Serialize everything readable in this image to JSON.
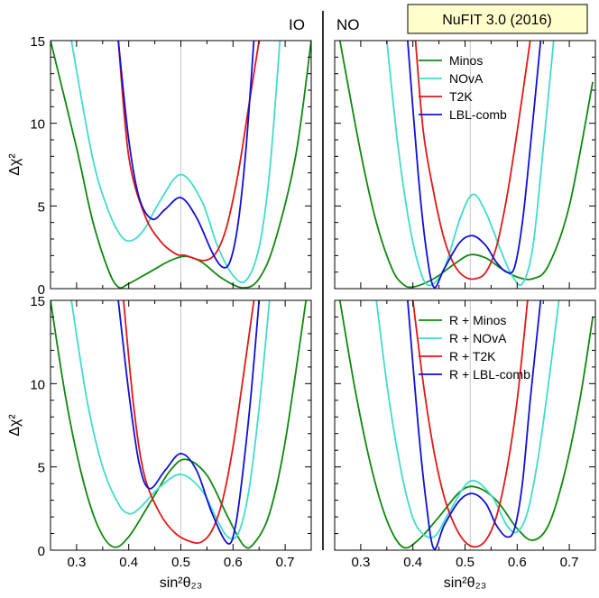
{
  "badge": "NuFIT 3.0 (2016)",
  "ordering_labels": [
    "IO",
    "NO"
  ],
  "colors": {
    "Minos": "#108810",
    "NOvA": "#40dccc",
    "T2K": "#e01818",
    "LBL-comb": "#1010d8",
    "refline": "#c8c8c8"
  },
  "chart_data": [
    {
      "type": "line",
      "panel": "top-left",
      "ordering": "IO",
      "xlim": [
        0.25,
        0.75
      ],
      "ylim": [
        0,
        15
      ],
      "xticks": [
        "0.3",
        "0.4",
        "0.5",
        "0.6",
        "0.7"
      ],
      "yticks": [
        "0",
        "5",
        "10",
        "15"
      ],
      "xlabel": "",
      "ylabel": "Δχ²",
      "reference_x": 0.5,
      "series": [
        {
          "name": "Minos",
          "x": [
            0.25,
            0.3,
            0.33,
            0.36,
            0.38,
            0.4,
            0.44,
            0.48,
            0.51,
            0.54,
            0.58,
            0.62,
            0.65,
            0.68,
            0.72,
            0.75
          ],
          "y": [
            15.0,
            8.5,
            4.2,
            1.2,
            0.1,
            0.3,
            1.0,
            1.7,
            1.95,
            1.6,
            0.6,
            0.05,
            0.6,
            2.8,
            8.0,
            15.0
          ]
        },
        {
          "name": "NOvA",
          "x": [
            0.29,
            0.33,
            0.36,
            0.385,
            0.405,
            0.43,
            0.46,
            0.5,
            0.54,
            0.57,
            0.6,
            0.625,
            0.65,
            0.67,
            0.69
          ],
          "y": [
            15.0,
            8.0,
            4.8,
            3.2,
            2.9,
            3.6,
            5.3,
            6.9,
            5.3,
            2.6,
            0.8,
            0.5,
            2.5,
            7.0,
            15.0
          ]
        },
        {
          "name": "T2K",
          "x": [
            0.38,
            0.4,
            0.43,
            0.46,
            0.49,
            0.51,
            0.54,
            0.56,
            0.575,
            0.59,
            0.61,
            0.63,
            0.65
          ],
          "y": [
            15.0,
            8.0,
            4.5,
            2.9,
            2.1,
            2.0,
            1.7,
            1.9,
            2.6,
            4.0,
            7.0,
            11.0,
            15.0
          ]
        },
        {
          "name": "LBL-comb",
          "x": [
            0.38,
            0.4,
            0.42,
            0.445,
            0.47,
            0.5,
            0.53,
            0.56,
            0.58,
            0.595,
            0.61,
            0.625,
            0.64
          ],
          "y": [
            15.0,
            9.0,
            5.5,
            4.2,
            4.8,
            5.5,
            4.3,
            2.2,
            1.3,
            1.7,
            4.0,
            8.5,
            15.0
          ]
        }
      ]
    },
    {
      "type": "line",
      "panel": "top-right",
      "ordering": "NO",
      "xlim": [
        0.25,
        0.75
      ],
      "ylim": [
        0,
        15
      ],
      "xticks": [
        "0.3",
        "0.4",
        "0.5",
        "0.6",
        "0.7"
      ],
      "yticks": [
        "0",
        "5",
        "10",
        "15"
      ],
      "xlabel": "",
      "ylabel": "",
      "reference_x": 0.51,
      "legend_position": "top-right",
      "series": [
        {
          "name": "Minos",
          "x": [
            0.26,
            0.3,
            0.33,
            0.36,
            0.38,
            0.4,
            0.44,
            0.48,
            0.51,
            0.54,
            0.57,
            0.6,
            0.63,
            0.66,
            0.7,
            0.745
          ],
          "y": [
            15.0,
            8.2,
            4.0,
            1.2,
            0.3,
            0.1,
            0.6,
            1.5,
            2.05,
            1.85,
            1.2,
            0.7,
            0.6,
            1.4,
            5.0,
            12.5
          ]
        },
        {
          "name": "NOvA",
          "x": [
            0.35,
            0.37,
            0.39,
            0.41,
            0.43,
            0.46,
            0.49,
            0.515,
            0.54,
            0.57,
            0.59,
            0.61,
            0.63,
            0.65,
            0.67
          ],
          "y": [
            15.0,
            9.0,
            4.5,
            1.5,
            0.2,
            1.2,
            4.2,
            5.7,
            4.6,
            2.2,
            0.8,
            0.3,
            2.5,
            8.5,
            15.0
          ]
        },
        {
          "name": "T2K",
          "x": [
            0.405,
            0.42,
            0.44,
            0.46,
            0.48,
            0.5,
            0.52,
            0.54,
            0.56,
            0.58,
            0.6,
            0.625
          ],
          "y": [
            15.0,
            9.5,
            5.8,
            3.0,
            1.4,
            0.7,
            0.6,
            1.0,
            2.5,
            5.5,
            9.5,
            15.0
          ]
        },
        {
          "name": "LBL-comb",
          "x": [
            0.39,
            0.41,
            0.425,
            0.44,
            0.46,
            0.49,
            0.515,
            0.54,
            0.56,
            0.58,
            0.595,
            0.61,
            0.625,
            0.645
          ],
          "y": [
            15.0,
            7.0,
            2.5,
            0.1,
            1.2,
            2.8,
            3.2,
            2.6,
            1.6,
            1.0,
            1.3,
            4.0,
            8.5,
            15.0
          ]
        }
      ]
    },
    {
      "type": "line",
      "panel": "bottom-left",
      "ordering": "IO",
      "xlim": [
        0.25,
        0.75
      ],
      "ylim": [
        0,
        15
      ],
      "xticks": [
        "0.3",
        "0.4",
        "0.5",
        "0.6",
        "0.7"
      ],
      "yticks": [
        "0",
        "5",
        "10",
        "15"
      ],
      "xlabel": "sin²θ₂₃",
      "ylabel": "Δχ²",
      "reference_x": 0.5,
      "series": [
        {
          "name": "R + Minos",
          "x": [
            0.25,
            0.28,
            0.31,
            0.34,
            0.37,
            0.4,
            0.44,
            0.48,
            0.51,
            0.55,
            0.59,
            0.62,
            0.64,
            0.67,
            0.7,
            0.74
          ],
          "y": [
            15.0,
            9.0,
            4.5,
            1.5,
            0.2,
            0.8,
            2.8,
            4.8,
            5.45,
            4.5,
            2.0,
            0.3,
            0.4,
            2.2,
            6.5,
            15.0
          ]
        },
        {
          "name": "R + NOvA",
          "x": [
            0.29,
            0.32,
            0.35,
            0.38,
            0.4,
            0.42,
            0.46,
            0.5,
            0.54,
            0.57,
            0.59,
            0.61,
            0.63,
            0.65,
            0.67
          ],
          "y": [
            15.0,
            9.0,
            5.0,
            2.8,
            2.2,
            2.5,
            3.8,
            4.55,
            3.6,
            1.8,
            0.8,
            1.0,
            3.5,
            8.5,
            15.0
          ]
        },
        {
          "name": "R + T2K",
          "x": [
            0.39,
            0.41,
            0.43,
            0.46,
            0.49,
            0.52,
            0.54,
            0.56,
            0.58,
            0.6,
            0.62,
            0.64
          ],
          "y": [
            15.0,
            8.5,
            4.5,
            2.2,
            1.0,
            0.5,
            0.5,
            1.2,
            3.0,
            6.2,
            10.5,
            15.0
          ]
        },
        {
          "name": "R + LBL-comb",
          "x": [
            0.38,
            0.4,
            0.42,
            0.44,
            0.47,
            0.5,
            0.53,
            0.56,
            0.59,
            0.605,
            0.62,
            0.635,
            0.65
          ],
          "y": [
            15.0,
            9.5,
            5.2,
            3.7,
            4.8,
            5.8,
            4.8,
            2.2,
            0.4,
            1.5,
            5.0,
            9.5,
            15.0
          ]
        }
      ]
    },
    {
      "type": "line",
      "panel": "bottom-right",
      "ordering": "NO",
      "xlim": [
        0.25,
        0.75
      ],
      "ylim": [
        0,
        15
      ],
      "xticks": [
        "0.3",
        "0.4",
        "0.5",
        "0.6",
        "0.7"
      ],
      "yticks": [
        "0",
        "5",
        "10",
        "15"
      ],
      "xlabel": "sin²θ₂₃",
      "ylabel": "",
      "reference_x": 0.51,
      "legend_position": "top-right",
      "series": [
        {
          "name": "R + Minos",
          "x": [
            0.26,
            0.29,
            0.32,
            0.35,
            0.38,
            0.41,
            0.45,
            0.49,
            0.52,
            0.56,
            0.6,
            0.63,
            0.66,
            0.69,
            0.72,
            0.745
          ],
          "y": [
            15.0,
            9.5,
            5.0,
            1.8,
            0.2,
            0.6,
            2.0,
            3.5,
            3.8,
            3.0,
            1.3,
            0.6,
            1.5,
            4.5,
            9.0,
            14.0
          ]
        },
        {
          "name": "R + NOvA",
          "x": [
            0.33,
            0.35,
            0.37,
            0.39,
            0.41,
            0.44,
            0.47,
            0.51,
            0.55,
            0.58,
            0.6,
            0.62,
            0.64,
            0.66,
            0.68
          ],
          "y": [
            15.0,
            10.0,
            6.0,
            3.0,
            1.3,
            0.8,
            2.3,
            4.15,
            3.3,
            1.5,
            1.1,
            2.3,
            5.5,
            10.0,
            15.0
          ]
        },
        {
          "name": "R + T2K",
          "x": [
            0.4,
            0.42,
            0.44,
            0.46,
            0.48,
            0.5,
            0.52,
            0.54,
            0.56,
            0.58,
            0.6,
            0.62
          ],
          "y": [
            15.0,
            10.0,
            6.0,
            3.2,
            1.5,
            0.5,
            0.2,
            0.6,
            2.0,
            4.8,
            9.0,
            15.0
          ]
        },
        {
          "name": "R + LBL-comb",
          "x": [
            0.39,
            0.41,
            0.425,
            0.44,
            0.46,
            0.49,
            0.515,
            0.54,
            0.56,
            0.58,
            0.595,
            0.61,
            0.625,
            0.645
          ],
          "y": [
            15.0,
            7.5,
            3.0,
            0.1,
            1.5,
            3.0,
            3.4,
            2.8,
            1.5,
            0.8,
            1.3,
            4.0,
            9.0,
            15.0
          ]
        }
      ]
    }
  ]
}
